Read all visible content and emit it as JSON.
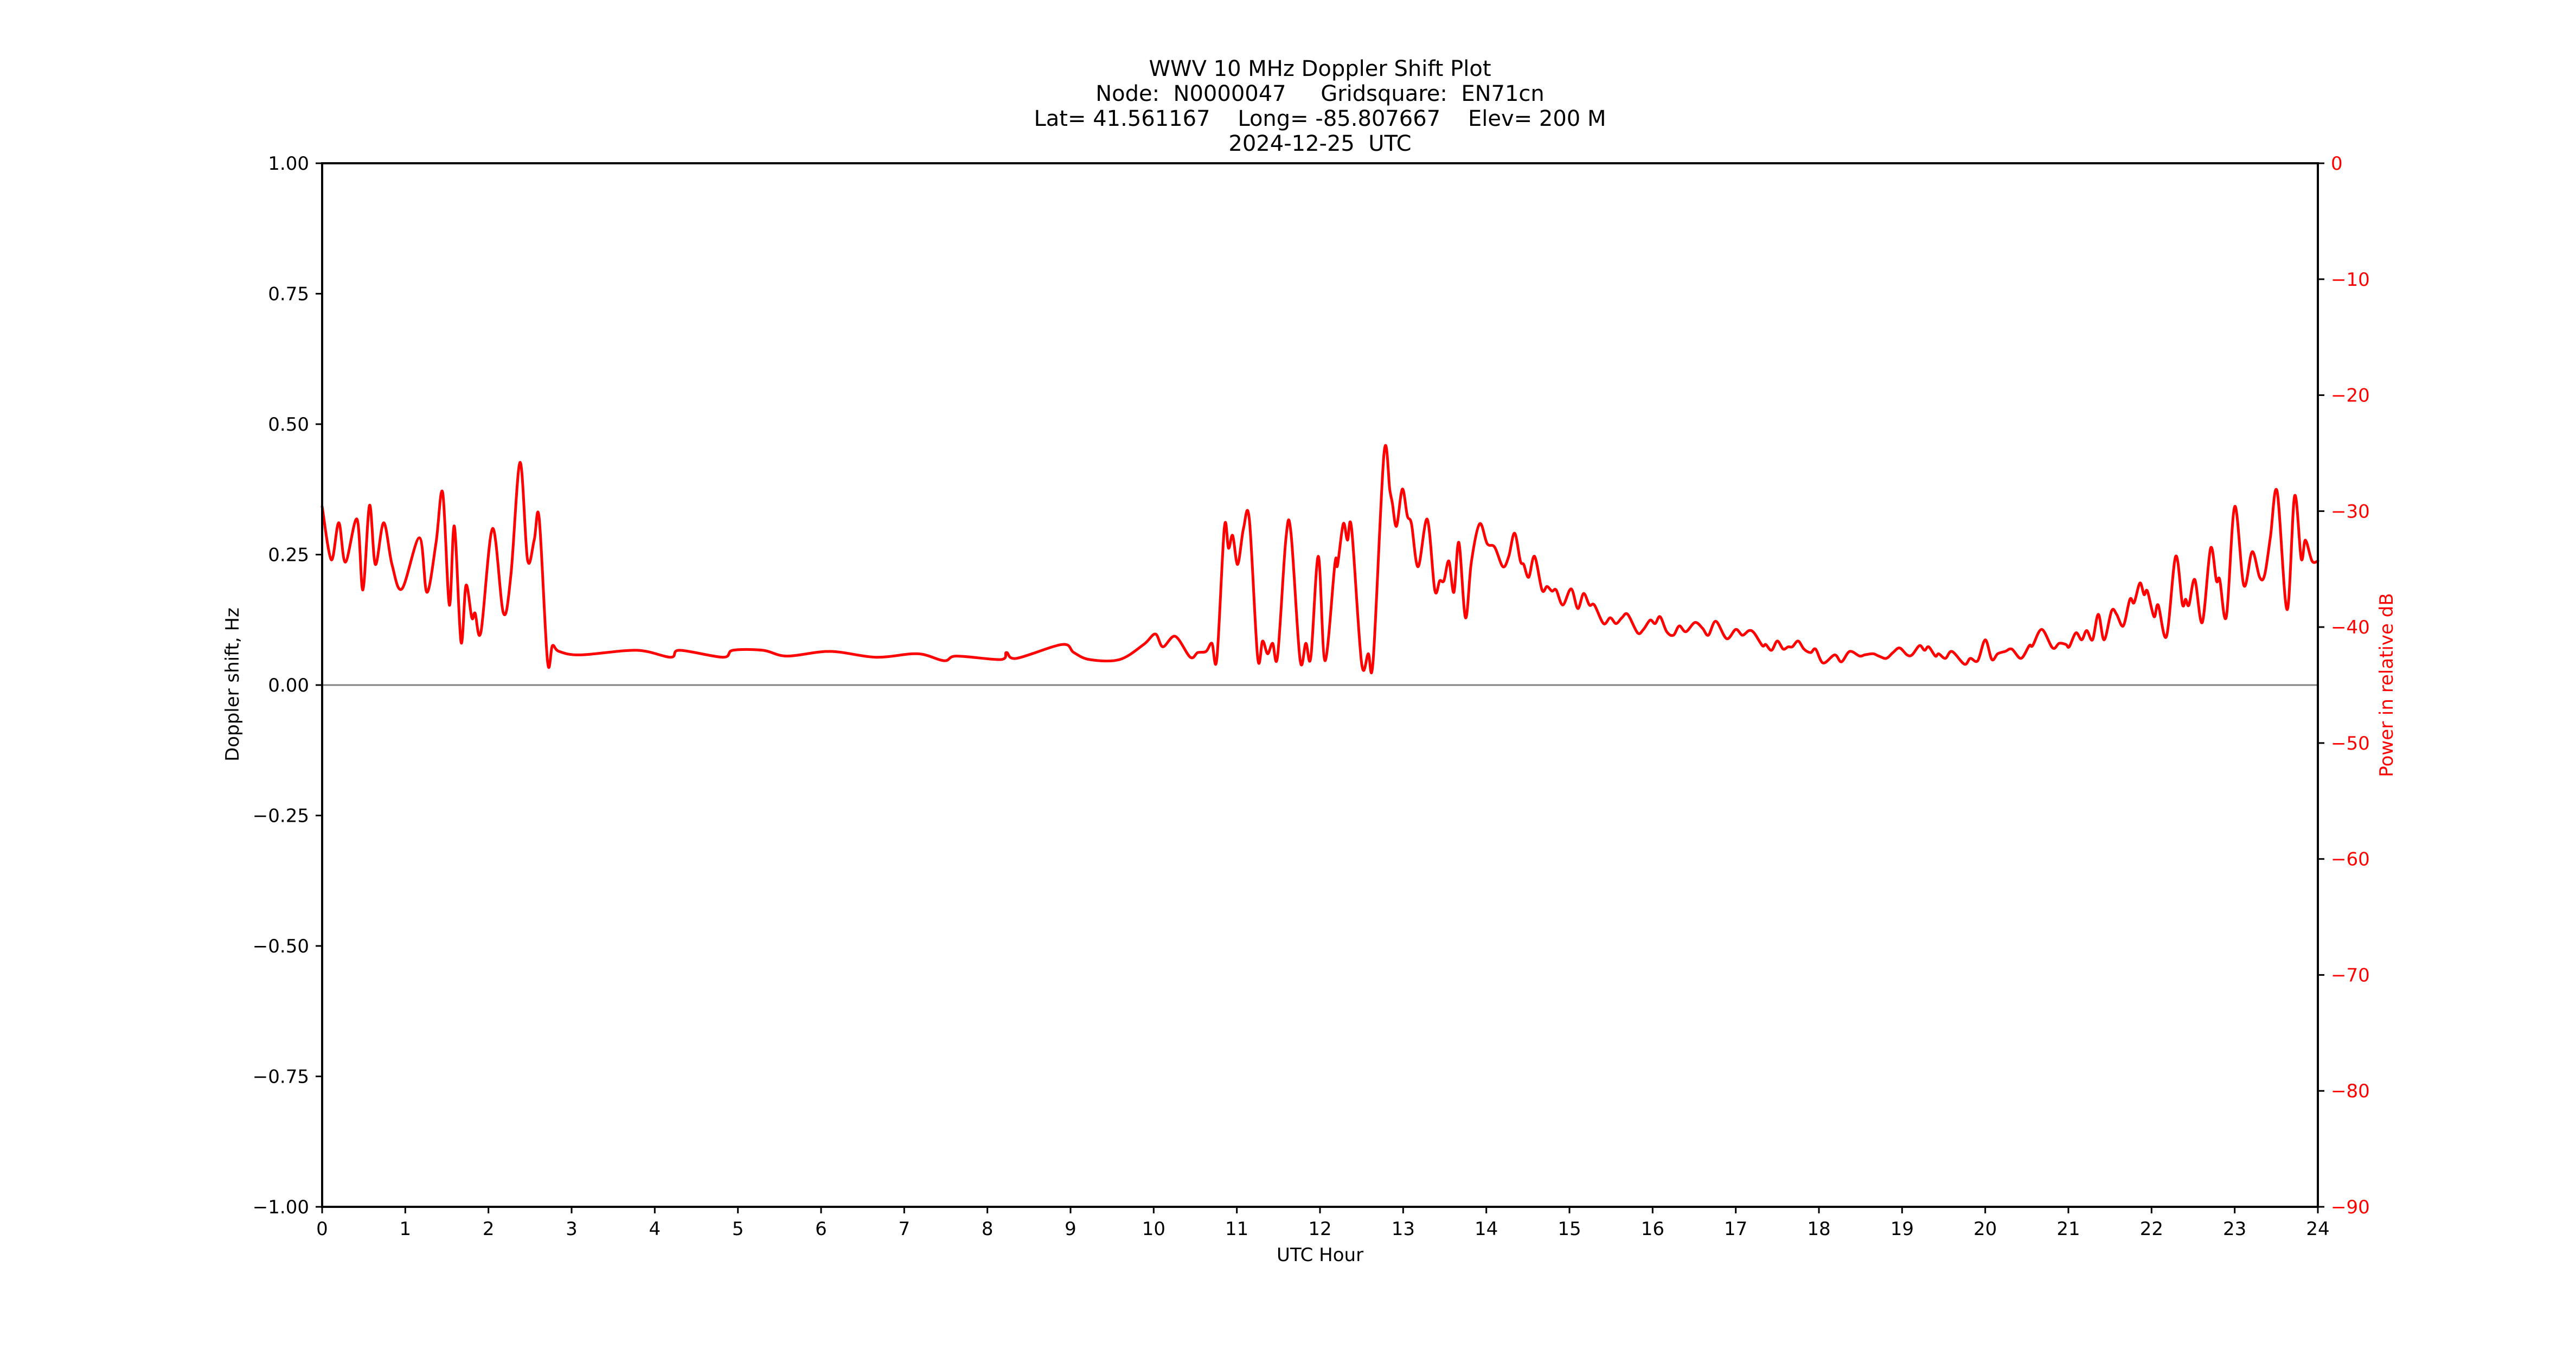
{
  "title": {
    "line1": "WWV 10 MHz Doppler Shift Plot",
    "line2": "Node:  N0000047     Gridsquare:  EN71cn",
    "line3": "Lat= 41.561167    Long= -85.807667    Elev= 200 M",
    "line4": "2024-12-25  UTC"
  },
  "colors": {
    "power_series": "#ff0000",
    "axes": "#000000",
    "zero_line": "#808080",
    "right_axis_labels": "#ff0000"
  },
  "chart_data": {
    "type": "line",
    "title": "WWV 10 MHz Doppler Shift Plot",
    "subtitle": [
      "Node:  N0000047     Gridsquare:  EN71cn",
      "Lat= 41.561167    Long= -85.807667    Elev= 200 M",
      "2024-12-25  UTC"
    ],
    "xlabel": "UTC Hour",
    "ylabel": "Doppler shift, Hz",
    "ylabel_right": "Power in relative dB",
    "xlim": [
      0,
      24
    ],
    "ylim": [
      -1.0,
      1.0
    ],
    "ylim_right": [
      -90,
      0
    ],
    "xticks": [
      "0",
      "1",
      "2",
      "3",
      "4",
      "5",
      "6",
      "7",
      "8",
      "9",
      "10",
      "11",
      "12",
      "13",
      "14",
      "15",
      "16",
      "17",
      "18",
      "19",
      "20",
      "21",
      "22",
      "23",
      "24"
    ],
    "yticks": [
      "1.00",
      "0.75",
      "0.50",
      "0.25",
      "0.00",
      "−0.25",
      "−0.50",
      "−0.75",
      "−1.00"
    ],
    "yticks_right": [
      "0",
      "−10",
      "−20",
      "−30",
      "−40",
      "−50",
      "−60",
      "−70",
      "−80",
      "−90"
    ],
    "grid": false,
    "legend": null,
    "reference_lines": [
      {
        "axis": "left",
        "y": 0.0,
        "color": "#808080"
      }
    ],
    "series": [
      {
        "name": "Power in relative dB",
        "axis": "right",
        "color": "#ff0000",
        "x": [
          0.0,
          0.11,
          0.2,
          0.28,
          0.42,
          0.49,
          0.57,
          0.64,
          0.74,
          0.84,
          0.96,
          1.17,
          1.26,
          1.37,
          1.45,
          1.53,
          1.59,
          1.67,
          1.73,
          1.8,
          1.84,
          1.91,
          2.05,
          2.18,
          2.27,
          2.38,
          2.47,
          2.55,
          2.61,
          2.71,
          2.77,
          2.85,
          3.11,
          3.78,
          4.19,
          4.3,
          4.82,
          4.94,
          5.3,
          5.59,
          6.11,
          6.66,
          7.16,
          7.48,
          7.63,
          8.16,
          8.23,
          8.35,
          8.9,
          9.04,
          9.23,
          9.59,
          9.88,
          10.02,
          10.11,
          10.26,
          10.44,
          10.53,
          10.63,
          10.7,
          10.76,
          10.85,
          10.9,
          10.95,
          11.01,
          11.08,
          11.15,
          11.25,
          11.31,
          11.37,
          11.43,
          11.49,
          11.59,
          11.65,
          11.76,
          11.83,
          11.89,
          11.98,
          12.06,
          12.18,
          12.21,
          12.28,
          12.33,
          12.38,
          12.5,
          12.58,
          12.64,
          12.77,
          12.84,
          12.87,
          12.92,
          12.99,
          13.05,
          13.1,
          13.18,
          13.29,
          13.38,
          13.44,
          13.49,
          13.55,
          13.61,
          13.67,
          13.75,
          13.82,
          13.92,
          14.01,
          14.1,
          14.2,
          14.27,
          14.34,
          14.41,
          14.45,
          14.51,
          14.58,
          14.67,
          14.73,
          14.79,
          14.84,
          14.92,
          15.02,
          15.1,
          15.17,
          15.24,
          15.3,
          15.41,
          15.49,
          15.56,
          15.63,
          15.7,
          15.82,
          15.89,
          15.97,
          16.03,
          16.09,
          16.17,
          16.25,
          16.32,
          16.4,
          16.51,
          16.6,
          16.67,
          16.76,
          16.89,
          17.0,
          17.08,
          17.16,
          17.22,
          17.32,
          17.36,
          17.43,
          17.5,
          17.57,
          17.63,
          17.68,
          17.75,
          17.82,
          17.9,
          17.96,
          18.05,
          18.19,
          18.27,
          18.37,
          18.49,
          18.55,
          18.65,
          18.72,
          18.81,
          18.89,
          18.97,
          19.06,
          19.12,
          19.21,
          19.27,
          19.32,
          19.4,
          19.44,
          19.52,
          19.6,
          19.75,
          19.82,
          19.91,
          20.0,
          20.08,
          20.15,
          20.24,
          20.32,
          20.43,
          20.53,
          20.57,
          20.68,
          20.81,
          20.89,
          20.97,
          21.01,
          21.09,
          21.16,
          21.22,
          21.29,
          21.36,
          21.43,
          21.52,
          21.58,
          21.66,
          21.74,
          21.79,
          21.86,
          21.91,
          21.95,
          22.03,
          22.08,
          22.18,
          22.29,
          22.37,
          22.41,
          22.45,
          22.52,
          22.61,
          22.71,
          22.78,
          22.82,
          22.9,
          23.0,
          23.11,
          23.21,
          23.3,
          23.36,
          23.43,
          23.51,
          23.63,
          23.72,
          23.8,
          23.85,
          23.93,
          24.0
        ],
        "values": [
          -29.6,
          -34.2,
          -31.0,
          -34.4,
          -30.7,
          -36.8,
          -29.5,
          -34.6,
          -31.0,
          -34.6,
          -36.7,
          -32.3,
          -37.0,
          -32.7,
          -28.4,
          -38.1,
          -31.3,
          -41.3,
          -36.4,
          -39.2,
          -38.8,
          -40.4,
          -31.5,
          -38.8,
          -35.5,
          -25.8,
          -34.2,
          -32.5,
          -30.6,
          -42.9,
          -41.6,
          -42.1,
          -42.4,
          -42.0,
          -42.6,
          -42.0,
          -42.6,
          -42.0,
          -42.0,
          -42.5,
          -42.1,
          -42.6,
          -42.3,
          -42.9,
          -42.5,
          -42.8,
          -42.2,
          -42.7,
          -41.5,
          -42.2,
          -42.8,
          -42.8,
          -41.5,
          -40.6,
          -41.7,
          -40.8,
          -42.6,
          -42.2,
          -42.1,
          -41.4,
          -42.7,
          -31.4,
          -33.2,
          -32.1,
          -34.6,
          -31.5,
          -30.7,
          -42.6,
          -41.2,
          -42.3,
          -41.4,
          -42.5,
          -32.4,
          -31.8,
          -42.8,
          -41.4,
          -42.6,
          -33.9,
          -42.9,
          -34.5,
          -34.7,
          -31.1,
          -32.5,
          -31.5,
          -43.1,
          -42.3,
          -42.8,
          -25.0,
          -28.2,
          -29.3,
          -31.3,
          -28.1,
          -30.4,
          -31.1,
          -34.8,
          -30.7,
          -36.8,
          -36.0,
          -36.0,
          -34.3,
          -37.0,
          -32.7,
          -39.2,
          -34.4,
          -31.1,
          -32.8,
          -33.1,
          -34.8,
          -33.9,
          -31.9,
          -34.3,
          -34.6,
          -35.7,
          -33.9,
          -36.8,
          -36.5,
          -36.9,
          -36.8,
          -38.1,
          -36.7,
          -38.4,
          -37.1,
          -38.1,
          -38.1,
          -39.7,
          -39.2,
          -39.7,
          -39.2,
          -38.9,
          -40.5,
          -40.2,
          -39.4,
          -39.7,
          -39.1,
          -40.4,
          -40.7,
          -39.9,
          -40.4,
          -39.6,
          -40.1,
          -40.7,
          -39.5,
          -41.0,
          -40.2,
          -40.7,
          -40.3,
          -40.5,
          -41.6,
          -41.5,
          -42.0,
          -41.2,
          -41.9,
          -41.7,
          -41.7,
          -41.2,
          -41.9,
          -42.2,
          -41.9,
          -43.1,
          -42.4,
          -43.0,
          -42.1,
          -42.5,
          -42.4,
          -42.3,
          -42.5,
          -42.7,
          -42.2,
          -41.8,
          -42.4,
          -42.4,
          -41.6,
          -42.0,
          -41.7,
          -42.5,
          -42.3,
          -42.7,
          -42.1,
          -43.2,
          -42.7,
          -42.9,
          -41.1,
          -42.8,
          -42.3,
          -42.1,
          -41.9,
          -42.7,
          -41.6,
          -41.6,
          -40.2,
          -41.8,
          -41.4,
          -41.5,
          -41.7,
          -40.5,
          -41.1,
          -40.3,
          -41.1,
          -38.9,
          -41.1,
          -38.6,
          -38.9,
          -39.9,
          -37.6,
          -37.9,
          -36.2,
          -37.2,
          -36.9,
          -39.1,
          -38.1,
          -40.8,
          -33.9,
          -38.0,
          -37.6,
          -38.1,
          -35.9,
          -39.6,
          -33.2,
          -36.0,
          -35.9,
          -39.1,
          -29.6,
          -36.4,
          -33.5,
          -35.7,
          -35.5,
          -32.2,
          -28.3,
          -38.5,
          -28.7,
          -34.1,
          -32.5,
          -34.3,
          -34.3
        ]
      }
    ]
  }
}
